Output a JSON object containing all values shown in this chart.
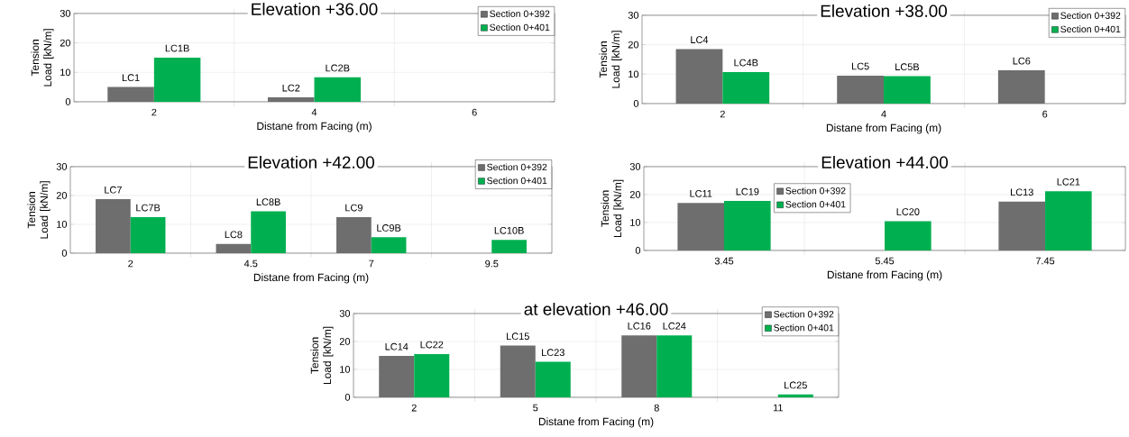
{
  "chart_data": [
    {
      "type": "bar",
      "title": "Elevation +36.00",
      "xlabel": "Distane from Facing (m)",
      "ylabel": "Tension Load [kN/m]",
      "categories": [
        "2",
        "4",
        "6"
      ],
      "series": [
        {
          "name": "Section 0+392",
          "color": "#6e6e6e",
          "values": [
            5,
            1.5,
            null
          ],
          "value_labels": [
            "LC1",
            "LC2",
            null
          ]
        },
        {
          "name": "Section 0+401",
          "color": "#00b050",
          "values": [
            15,
            8.3,
            null
          ],
          "value_labels": [
            "LC1B",
            "LC2B",
            null
          ]
        }
      ],
      "ylim": [
        0,
        30
      ],
      "yticks": [
        0,
        10,
        20,
        30
      ],
      "grid": true,
      "legend": "top right"
    },
    {
      "type": "bar",
      "title": "Elevation +38.00",
      "xlabel": "Distane from Facing (m)",
      "ylabel": "Tension Load [kN/m]",
      "categories": [
        "2",
        "4",
        "6"
      ],
      "series": [
        {
          "name": "Section 0+392",
          "color": "#6e6e6e",
          "values": [
            18.5,
            9.5,
            11.3
          ],
          "value_labels": [
            "LC4",
            "LC5",
            "LC6"
          ]
        },
        {
          "name": "Section 0+401",
          "color": "#00b050",
          "values": [
            10.7,
            9.3,
            null
          ],
          "value_labels": [
            "LC4B",
            "LC5B",
            null
          ]
        }
      ],
      "ylim": [
        0,
        30
      ],
      "yticks": [
        0,
        10,
        20,
        30
      ],
      "grid": true,
      "legend": "top right"
    },
    {
      "type": "bar",
      "title": "Elevation +42.00",
      "xlabel": "Distane from Facing (m)",
      "ylabel": "Tension Load [kN/m]",
      "categories": [
        "2",
        "4.5",
        "7",
        "9.5"
      ],
      "series": [
        {
          "name": "Section 0+392",
          "color": "#6e6e6e",
          "values": [
            18.7,
            3.2,
            12.5,
            null
          ],
          "value_labels": [
            "LC7",
            "LC8",
            "LC9",
            null
          ]
        },
        {
          "name": "Section 0+401",
          "color": "#00b050",
          "values": [
            12.5,
            14.5,
            5.5,
            4.6
          ],
          "value_labels": [
            "LC7B",
            "LC8B",
            "LC9B",
            "LC10B"
          ]
        }
      ],
      "ylim": [
        0,
        30
      ],
      "yticks": [
        0,
        10,
        20,
        30
      ],
      "grid": true,
      "legend": "top right"
    },
    {
      "type": "bar",
      "title": "Elevation +44.00",
      "xlabel": "Distane from Facing (m)",
      "ylabel": "Tension Load [kN/m]",
      "categories": [
        "3.45",
        "5.45",
        "7.45"
      ],
      "series": [
        {
          "name": "Section 0+392",
          "color": "#6e6e6e",
          "values": [
            17,
            null,
            17.5
          ],
          "value_labels": [
            "LC11",
            null,
            "LC13"
          ]
        },
        {
          "name": "Section 0+401",
          "color": "#00b050",
          "values": [
            17.7,
            10.5,
            21.2
          ],
          "value_labels": [
            "LC19",
            "LC20",
            "LC21"
          ]
        }
      ],
      "ylim": [
        0,
        30
      ],
      "yticks": [
        0,
        10,
        20,
        30
      ],
      "grid": true,
      "legend": "top left"
    },
    {
      "type": "bar",
      "title": "at elevation +46.00",
      "xlabel": "Distane from Facing (m)",
      "ylabel": "Tension Load [kN/m]",
      "categories": [
        "2",
        "5",
        "8",
        "11"
      ],
      "series": [
        {
          "name": "Section 0+392",
          "color": "#6e6e6e",
          "values": [
            14.8,
            18.5,
            22.2,
            null
          ],
          "value_labels": [
            "LC14",
            "LC15",
            "LC16",
            null
          ]
        },
        {
          "name": "Section 0+401",
          "color": "#00b050",
          "values": [
            15.5,
            12.7,
            22.2,
            1
          ],
          "value_labels": [
            "LC22",
            "LC23",
            "LC24",
            "LC25"
          ]
        }
      ],
      "ylim": [
        0,
        30
      ],
      "yticks": [
        0,
        10,
        20,
        30
      ],
      "grid": true,
      "legend": "top right"
    }
  ]
}
